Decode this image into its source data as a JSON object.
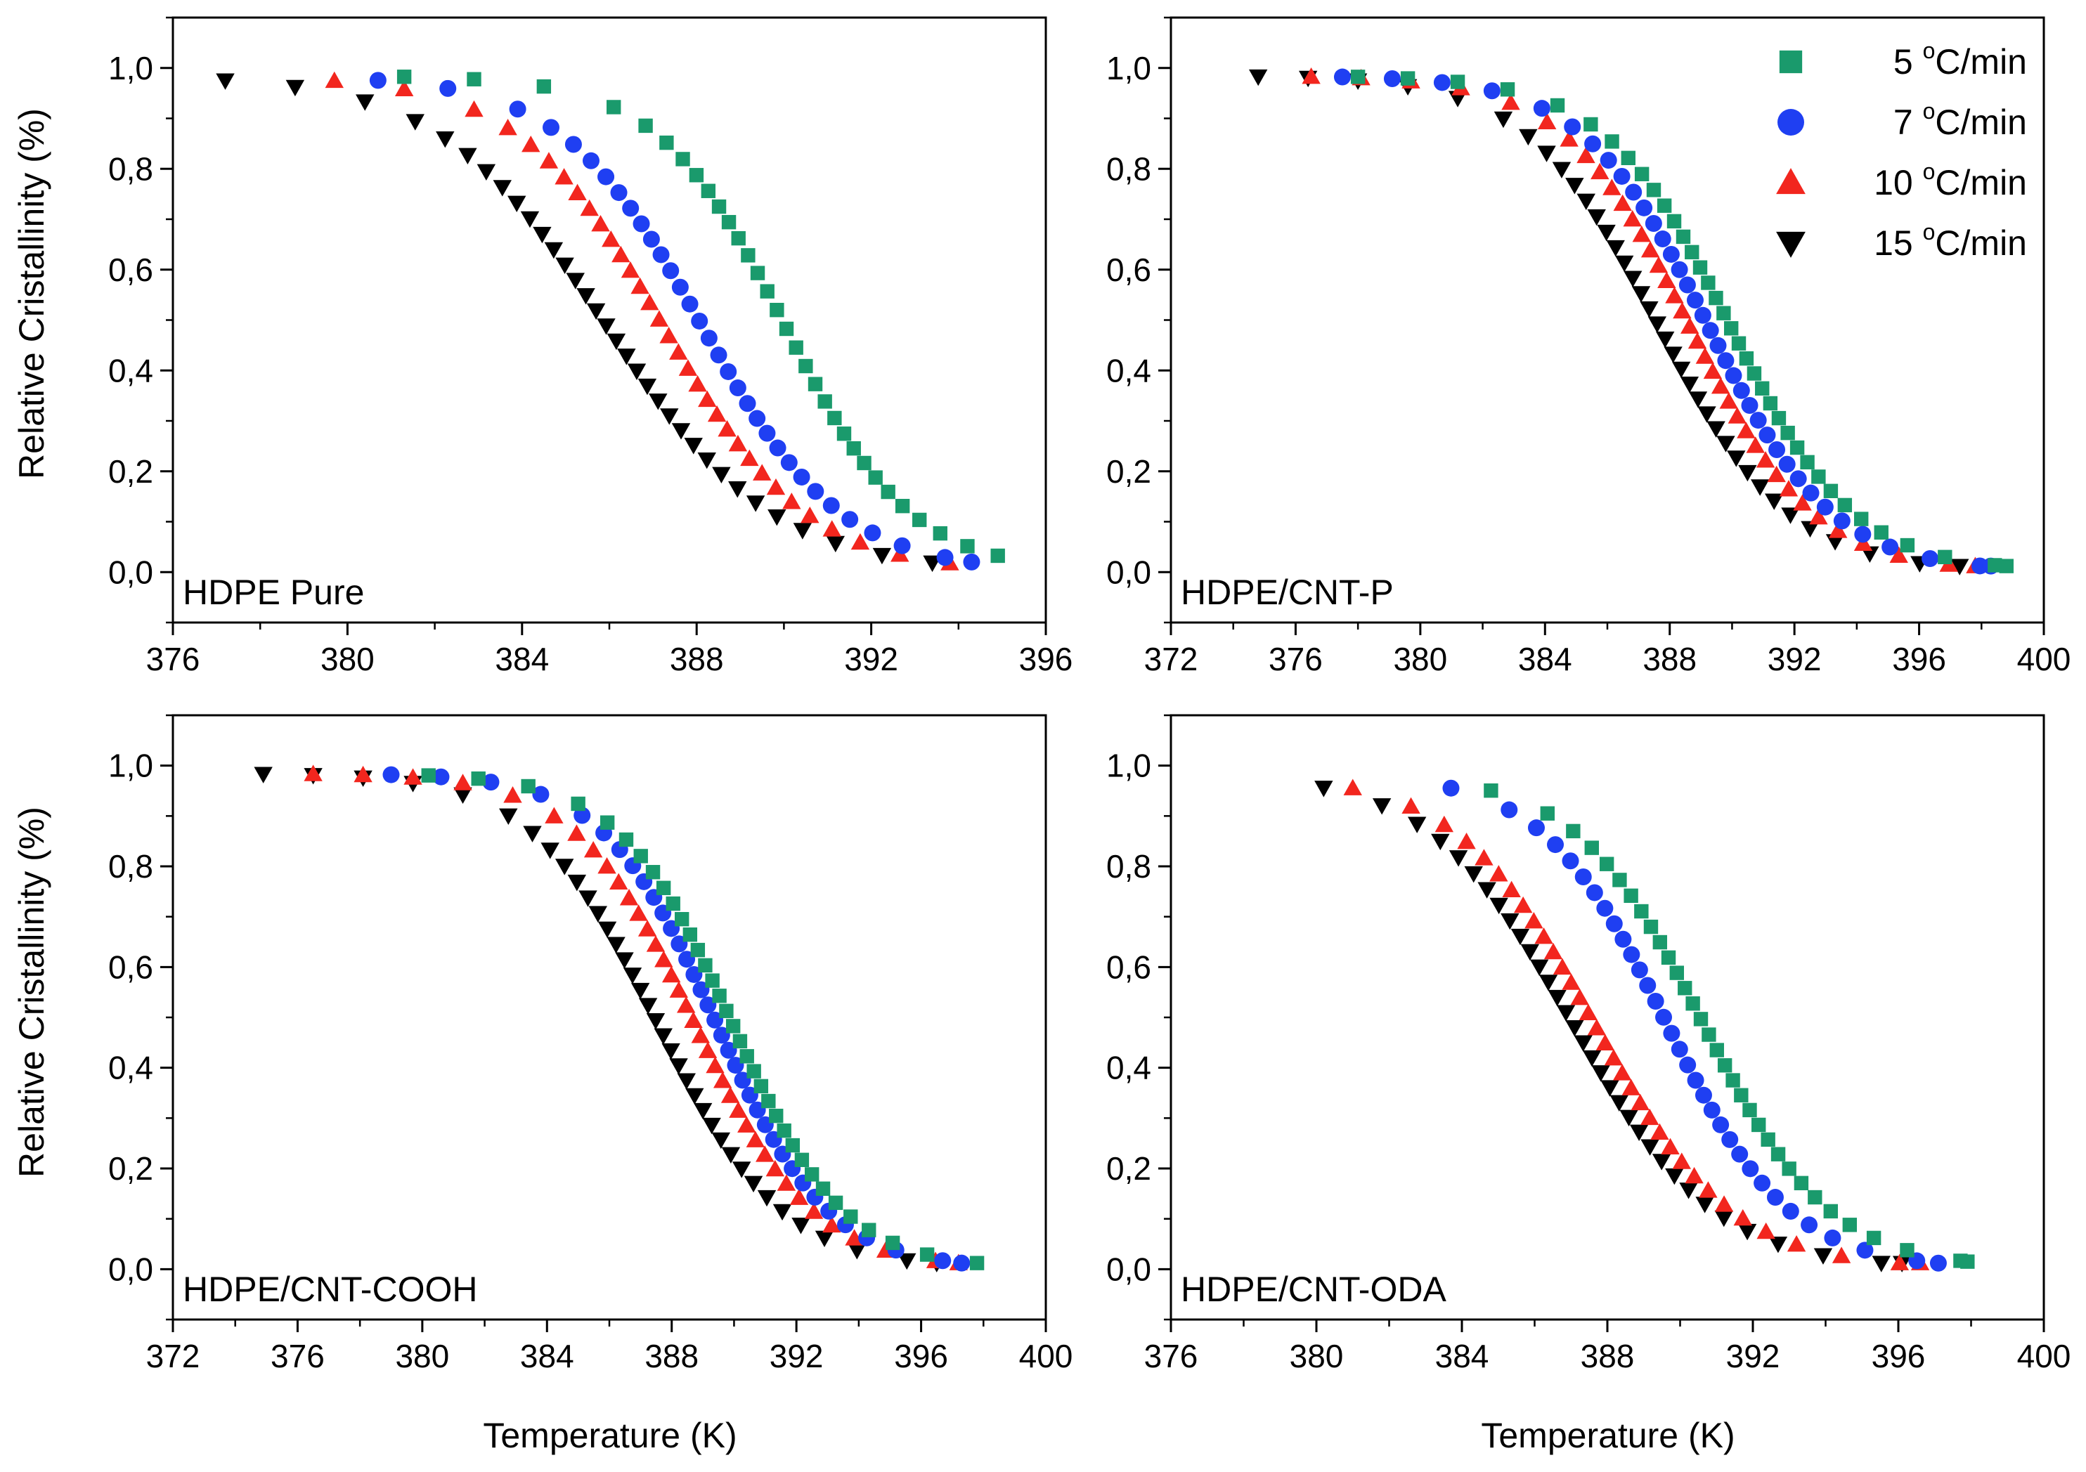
{
  "figure": {
    "y_axis_label": "Relative Cristallinity (%)",
    "x_axis_label": "Temperature (K)"
  },
  "legend": {
    "entries": [
      {
        "value": "5",
        "unit": "C/min",
        "degree": "o",
        "marker": "square",
        "color": "#1a9a6c"
      },
      {
        "value": "7",
        "unit": "C/min",
        "degree": "o",
        "marker": "circle",
        "color": "#1f3ff2"
      },
      {
        "value": "10",
        "unit": "C/min",
        "degree": "o",
        "marker": "triangle-up",
        "color": "#f2261e"
      },
      {
        "value": "15",
        "unit": "C/min",
        "degree": "o",
        "marker": "triangle-down",
        "color": "#000000"
      }
    ]
  },
  "chart_data": [
    {
      "type": "scatter",
      "panel_label": "HDPE Pure",
      "xlim": [
        376,
        396
      ],
      "ylim": [
        -0.1,
        1.1
      ],
      "x_ticks": [
        "376",
        "380",
        "384",
        "388",
        "392",
        "396"
      ],
      "y_ticks": [
        "0,0",
        "0,2",
        "0,4",
        "0,6",
        "0,8",
        "1,0"
      ],
      "series_shape": [
        {
          "series": "5",
          "T_start": 381.3,
          "T_end": 394.9,
          "T_half": 390.0,
          "width": 1.45
        },
        {
          "series": "7",
          "T_start": 380.7,
          "T_end": 394.3,
          "T_half": 388.1,
          "width": 1.6
        },
        {
          "series": "10",
          "T_start": 379.7,
          "T_end": 393.8,
          "T_half": 387.2,
          "width": 1.65
        },
        {
          "series": "15",
          "T_start": 377.2,
          "T_end": 393.4,
          "T_half": 385.9,
          "width": 1.9
        }
      ]
    },
    {
      "type": "scatter",
      "panel_label": "HDPE/CNT-P",
      "xlim": [
        372,
        400
      ],
      "ylim": [
        -0.1,
        1.1
      ],
      "x_ticks": [
        "372",
        "376",
        "380",
        "384",
        "388",
        "392",
        "396",
        "400"
      ],
      "y_ticks": [
        "0,0",
        "0,2",
        "0,4",
        "0,6",
        "0,8",
        "1,0"
      ],
      "series_shape": [
        {
          "series": "5",
          "T_start": 378.0,
          "T_end": 398.8,
          "T_half": 389.9,
          "width": 2.0
        },
        {
          "series": "7",
          "T_start": 377.5,
          "T_end": 398.3,
          "T_half": 389.2,
          "width": 2.0
        },
        {
          "series": "10",
          "T_start": 376.5,
          "T_end": 397.8,
          "T_half": 388.6,
          "width": 2.0
        },
        {
          "series": "15",
          "T_start": 374.8,
          "T_end": 397.3,
          "T_half": 387.6,
          "width": 2.1
        }
      ]
    },
    {
      "type": "scatter",
      "panel_label": "HDPE/CNT-COOH",
      "xlim": [
        372,
        400
      ],
      "ylim": [
        -0.1,
        1.1
      ],
      "x_ticks": [
        "372",
        "376",
        "380",
        "384",
        "388",
        "392",
        "396",
        "400"
      ],
      "y_ticks": [
        "0,0",
        "0,2",
        "0,4",
        "0,6",
        "0,8",
        "1,0"
      ],
      "series_shape": [
        {
          "series": "5",
          "T_start": 380.2,
          "T_end": 397.8,
          "T_half": 389.9,
          "width": 1.8
        },
        {
          "series": "7",
          "T_start": 379.0,
          "T_end": 397.3,
          "T_half": 389.4,
          "width": 1.8
        },
        {
          "series": "10",
          "T_start": 376.5,
          "T_end": 397.2,
          "T_half": 388.7,
          "width": 1.9
        },
        {
          "series": "15",
          "T_start": 374.9,
          "T_end": 396.5,
          "T_half": 387.5,
          "width": 2.0
        }
      ]
    },
    {
      "type": "scatter",
      "panel_label": "HDPE/CNT-ODA",
      "xlim": [
        376,
        400
      ],
      "ylim": [
        -0.1,
        1.1
      ],
      "x_ticks": [
        "376",
        "380",
        "384",
        "388",
        "392",
        "396",
        "400"
      ],
      "y_ticks": [
        "0,0",
        "0,2",
        "0,4",
        "0,6",
        "0,8",
        "1,0"
      ],
      "series_shape": [
        {
          "series": "5",
          "T_start": 384.8,
          "T_end": 397.9,
          "T_half": 390.6,
          "width": 1.75
        },
        {
          "series": "7",
          "T_start": 383.7,
          "T_end": 397.1,
          "T_half": 389.6,
          "width": 1.7
        },
        {
          "series": "10",
          "T_start": 381.0,
          "T_end": 396.6,
          "T_half": 387.6,
          "width": 1.9
        },
        {
          "series": "15",
          "T_start": 380.2,
          "T_end": 396.1,
          "T_half": 387.0,
          "width": 1.95
        }
      ]
    }
  ]
}
